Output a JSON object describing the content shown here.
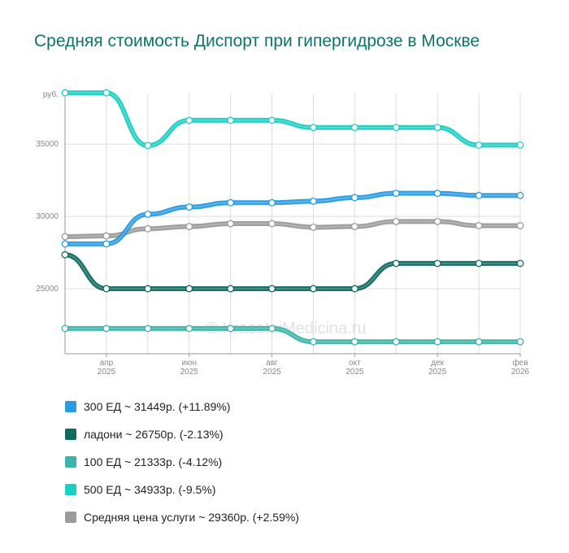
{
  "title": "Средняя стоимость Диспорт при гипергидрозе в Москве",
  "watermark": "© KrasotaiMedicina.ru",
  "chart_data": {
    "type": "line",
    "y_unit": "руб.",
    "ylim": [
      20500,
      38500
    ],
    "yticks": [
      25000,
      30000,
      35000
    ],
    "x": [
      0,
      1,
      2,
      3,
      4,
      5,
      6,
      7,
      8,
      9,
      10,
      11
    ],
    "xlim": [
      0,
      11
    ],
    "x_tick_labels": [
      {
        "x": 1,
        "line1": "апр",
        "line2": "2025"
      },
      {
        "x": 3,
        "line1": "июн",
        "line2": "2025"
      },
      {
        "x": 5,
        "line1": "авг",
        "line2": "2025"
      },
      {
        "x": 7,
        "line1": "окт",
        "line2": "2025"
      },
      {
        "x": 9,
        "line1": "дек",
        "line2": "2025"
      },
      {
        "x": 11,
        "line1": "фев",
        "line2": "2026"
      }
    ],
    "series": [
      {
        "name": "500 ЕД",
        "color": "#1ccfc4",
        "values": [
          38550,
          38550,
          34900,
          36650,
          36650,
          36650,
          36150,
          36150,
          36150,
          36150,
          34933,
          34933
        ]
      },
      {
        "name": "Средняя цена услуги",
        "color": "#9b9b9b",
        "values": [
          28600,
          28650,
          29150,
          29300,
          29500,
          29500,
          29250,
          29300,
          29650,
          29650,
          29360,
          29360
        ]
      },
      {
        "name": "300 ЕД",
        "color": "#2a9be0",
        "values": [
          28100,
          28100,
          30150,
          30650,
          30950,
          30950,
          31050,
          31300,
          31600,
          31600,
          31449,
          31449
        ]
      },
      {
        "name": "ладони",
        "color": "#0f6a60",
        "values": [
          27350,
          25000,
          25000,
          25000,
          25000,
          25000,
          25000,
          25000,
          26750,
          26750,
          26750,
          26750
        ]
      },
      {
        "name": "100 ЕД",
        "color": "#3bb3a9",
        "values": [
          22250,
          22250,
          22250,
          22250,
          22250,
          22250,
          21333,
          21333,
          21333,
          21333,
          21333,
          21333
        ]
      }
    ]
  },
  "legend": [
    {
      "label": "300 ЕД ~ 31449р. (+11.89%)",
      "color": "#2a9be0"
    },
    {
      "label": "ладони ~ 26750р. (-2.13%)",
      "color": "#0f6a60"
    },
    {
      "label": "100 ЕД ~ 21333р. (-4.12%)",
      "color": "#3bb3a9"
    },
    {
      "label": "500 ЕД ~ 34933р. (-9.5%)",
      "color": "#1ccfc4"
    },
    {
      "label": "Средняя цена услуги ~ 29360р. (+2.59%)",
      "color": "#9b9b9b"
    }
  ]
}
